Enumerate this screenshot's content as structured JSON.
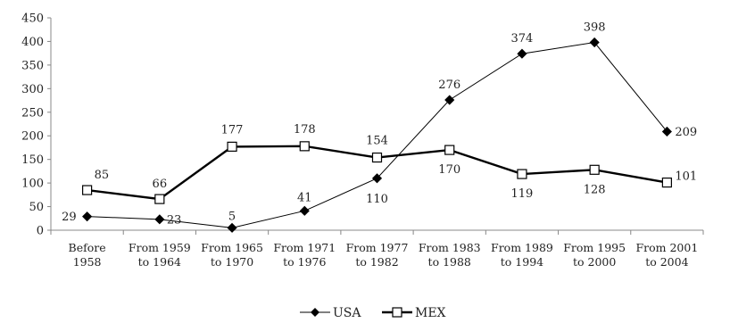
{
  "chart_data": {
    "type": "line",
    "categories": [
      [
        "Before",
        "1958"
      ],
      [
        "From 1959",
        "to 1964"
      ],
      [
        "From 1965",
        "to 1970"
      ],
      [
        "From 1971",
        "to 1976"
      ],
      [
        "From 1977",
        "to 1982"
      ],
      [
        "From 1983",
        "to 1988"
      ],
      [
        "From 1989",
        "to 1994"
      ],
      [
        "From 1995",
        "to 2000"
      ],
      [
        "From 2001",
        "to 2004"
      ]
    ],
    "series": [
      {
        "name": "USA",
        "values": [
          29,
          23,
          5,
          41,
          110,
          276,
          374,
          398,
          209
        ],
        "labels": [
          "29",
          "23",
          "5",
          "41",
          "110",
          "276",
          "374",
          "398",
          "209"
        ],
        "marker": "filled-diamond",
        "color": "#000000",
        "line": "thin"
      },
      {
        "name": "MEX",
        "values": [
          85,
          66,
          177,
          178,
          154,
          170,
          119,
          128,
          101
        ],
        "labels": [
          "85",
          "66",
          "177",
          "178",
          "154",
          "170",
          "119",
          "128",
          "101"
        ],
        "marker": "open-square",
        "color": "#000000",
        "line": "thick"
      }
    ],
    "yticks": [
      "0",
      "50",
      "100",
      "150",
      "200",
      "250",
      "300",
      "350",
      "400",
      "450"
    ],
    "ylim": [
      0,
      450
    ],
    "title": "",
    "xlabel": "",
    "ylabel": "",
    "grid": false,
    "legend_position": "bottom"
  }
}
